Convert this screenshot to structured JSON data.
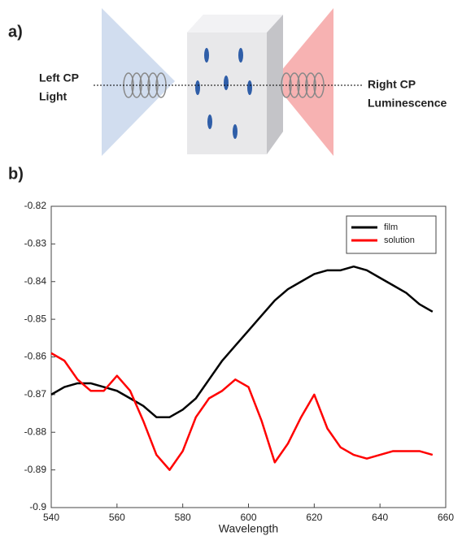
{
  "panel_a": {
    "label": "a)",
    "left_label": [
      "Left CP",
      "Light"
    ],
    "right_label": [
      "Right CP",
      "Luminescence"
    ]
  },
  "panel_b": {
    "label": "b)"
  },
  "chart_data": {
    "type": "line",
    "xlabel": "Wavelength",
    "x": [
      540,
      544,
      548,
      552,
      556,
      560,
      564,
      568,
      572,
      576,
      580,
      584,
      588,
      592,
      596,
      600,
      604,
      608,
      612,
      616,
      620,
      624,
      628,
      632,
      636,
      640,
      644,
      648,
      652,
      656
    ],
    "series": [
      {
        "name": "film",
        "color": "#000000",
        "values": [
          -0.87,
          -0.868,
          -0.867,
          -0.867,
          -0.868,
          -0.869,
          -0.871,
          -0.873,
          -0.876,
          -0.876,
          -0.874,
          -0.871,
          -0.866,
          -0.861,
          -0.857,
          -0.853,
          -0.849,
          -0.845,
          -0.842,
          -0.84,
          -0.838,
          -0.837,
          -0.837,
          -0.836,
          -0.837,
          -0.839,
          -0.841,
          -0.843,
          -0.846,
          -0.848
        ]
      },
      {
        "name": "solution",
        "color": "#ff0000",
        "values": [
          -0.859,
          -0.861,
          -0.866,
          -0.869,
          -0.869,
          -0.865,
          -0.869,
          -0.877,
          -0.886,
          -0.89,
          -0.885,
          -0.876,
          -0.871,
          -0.869,
          -0.866,
          -0.868,
          -0.877,
          -0.888,
          -0.883,
          -0.876,
          -0.87,
          -0.879,
          -0.884,
          -0.886,
          -0.887,
          -0.886,
          -0.885,
          -0.885,
          -0.885,
          -0.886
        ]
      }
    ],
    "xlim": [
      540,
      660
    ],
    "xticks": [
      540,
      560,
      580,
      600,
      620,
      640,
      660
    ],
    "ylim": [
      -0.9,
      -0.82
    ],
    "yticks": [
      -0.82,
      -0.83,
      -0.84,
      -0.85,
      -0.86,
      -0.87,
      -0.88,
      -0.89,
      -0.9
    ],
    "legend": "top-right"
  }
}
